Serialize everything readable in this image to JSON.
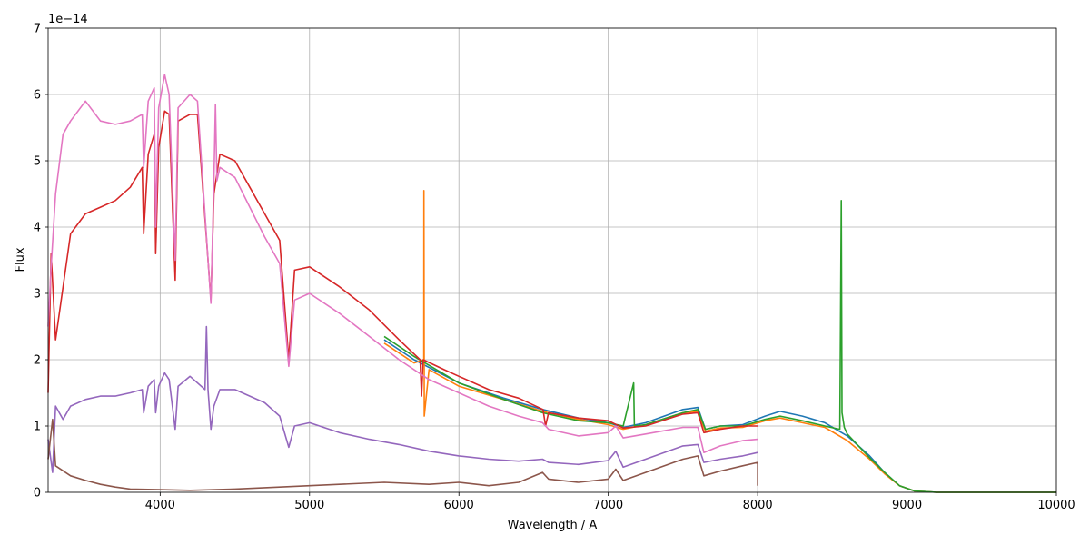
{
  "chart_data": {
    "type": "line",
    "xlabel": "Wavelength / A",
    "ylabel": "Flux",
    "offset_text": "1e−14",
    "xlim": [
      3250,
      10000
    ],
    "ylim": [
      0,
      7
    ],
    "grid": true,
    "xticks": [
      4000,
      5000,
      6000,
      7000,
      8000,
      9000,
      10000
    ],
    "yticks": [
      0,
      1,
      2,
      3,
      4,
      5,
      6,
      7
    ],
    "series": [
      {
        "color": "#1f77b4",
        "points": [
          [
            5500,
            2.3
          ],
          [
            5700,
            2.0
          ],
          [
            6000,
            1.65
          ],
          [
            6300,
            1.42
          ],
          [
            6560,
            1.25
          ],
          [
            6800,
            1.12
          ],
          [
            7000,
            1.05
          ],
          [
            7100,
            0.98
          ],
          [
            7250,
            1.05
          ],
          [
            7500,
            1.25
          ],
          [
            7600,
            1.28
          ],
          [
            7650,
            0.95
          ],
          [
            7750,
            1.0
          ],
          [
            7900,
            1.02
          ],
          [
            8050,
            1.15
          ],
          [
            8150,
            1.22
          ],
          [
            8300,
            1.15
          ],
          [
            8450,
            1.05
          ],
          [
            8600,
            0.85
          ],
          [
            8750,
            0.55
          ],
          [
            8850,
            0.3
          ],
          [
            8950,
            0.1
          ],
          [
            9050,
            0.02
          ],
          [
            9200,
            0.0
          ],
          [
            10000,
            0.0
          ]
        ]
      },
      {
        "color": "#ff7f0e",
        "points": [
          [
            5500,
            2.25
          ],
          [
            5700,
            1.95
          ],
          [
            5765,
            2.0
          ],
          [
            5766,
            4.55
          ],
          [
            5768,
            1.15
          ],
          [
            5800,
            1.85
          ],
          [
            6000,
            1.6
          ],
          [
            6300,
            1.4
          ],
          [
            6560,
            1.22
          ],
          [
            6800,
            1.1
          ],
          [
            7000,
            1.02
          ],
          [
            7100,
            0.95
          ],
          [
            7250,
            1.02
          ],
          [
            7500,
            1.2
          ],
          [
            7600,
            1.22
          ],
          [
            7650,
            0.92
          ],
          [
            7750,
            0.97
          ],
          [
            7900,
            0.98
          ],
          [
            8050,
            1.08
          ],
          [
            8150,
            1.12
          ],
          [
            8300,
            1.05
          ],
          [
            8450,
            0.98
          ],
          [
            8600,
            0.78
          ],
          [
            8750,
            0.5
          ],
          [
            8850,
            0.28
          ],
          [
            8950,
            0.1
          ],
          [
            9050,
            0.02
          ],
          [
            9200,
            0.0
          ],
          [
            10000,
            0.0
          ]
        ]
      },
      {
        "color": "#2ca02c",
        "points": [
          [
            5500,
            2.35
          ],
          [
            5700,
            2.05
          ],
          [
            6000,
            1.65
          ],
          [
            6300,
            1.4
          ],
          [
            6560,
            1.2
          ],
          [
            6800,
            1.08
          ],
          [
            7000,
            1.05
          ],
          [
            7100,
            1.0
          ],
          [
            7170,
            1.65
          ],
          [
            7175,
            1.0
          ],
          [
            7250,
            1.02
          ],
          [
            7500,
            1.2
          ],
          [
            7600,
            1.25
          ],
          [
            7650,
            0.95
          ],
          [
            7750,
            1.0
          ],
          [
            7900,
            1.0
          ],
          [
            8050,
            1.1
          ],
          [
            8150,
            1.15
          ],
          [
            8300,
            1.08
          ],
          [
            8450,
            1.0
          ],
          [
            8550,
            0.95
          ],
          [
            8560,
            4.4
          ],
          [
            8565,
            1.2
          ],
          [
            8580,
            0.98
          ],
          [
            8600,
            0.88
          ],
          [
            8750,
            0.52
          ],
          [
            8850,
            0.3
          ],
          [
            8950,
            0.1
          ],
          [
            9050,
            0.02
          ],
          [
            9200,
            0.0
          ],
          [
            10000,
            0.0
          ]
        ]
      },
      {
        "color": "#d62728",
        "points": [
          [
            3250,
            1.5
          ],
          [
            3270,
            3.6
          ],
          [
            3300,
            2.3
          ],
          [
            3400,
            3.9
          ],
          [
            3500,
            4.2
          ],
          [
            3600,
            4.3
          ],
          [
            3700,
            4.4
          ],
          [
            3800,
            4.6
          ],
          [
            3880,
            4.9
          ],
          [
            3890,
            3.9
          ],
          [
            3920,
            5.1
          ],
          [
            3960,
            5.4
          ],
          [
            3970,
            3.6
          ],
          [
            3990,
            5.2
          ],
          [
            4030,
            5.75
          ],
          [
            4060,
            5.7
          ],
          [
            4101,
            3.2
          ],
          [
            4120,
            5.6
          ],
          [
            4200,
            5.7
          ],
          [
            4250,
            5.7
          ],
          [
            4340,
            2.9
          ],
          [
            4360,
            4.5
          ],
          [
            4400,
            5.1
          ],
          [
            4500,
            5.0
          ],
          [
            4600,
            4.6
          ],
          [
            4700,
            4.2
          ],
          [
            4800,
            3.8
          ],
          [
            4861,
            2.0
          ],
          [
            4900,
            3.35
          ],
          [
            5000,
            3.4
          ],
          [
            5200,
            3.1
          ],
          [
            5400,
            2.75
          ],
          [
            5600,
            2.3
          ],
          [
            5740,
            2.0
          ],
          [
            5750,
            1.45
          ],
          [
            5760,
            2.0
          ],
          [
            5900,
            1.85
          ],
          [
            6000,
            1.75
          ],
          [
            6200,
            1.55
          ],
          [
            6400,
            1.42
          ],
          [
            6563,
            1.25
          ],
          [
            6580,
            1.0
          ],
          [
            6600,
            1.2
          ],
          [
            6800,
            1.12
          ],
          [
            7000,
            1.08
          ],
          [
            7100,
            0.97
          ],
          [
            7250,
            1.0
          ],
          [
            7500,
            1.18
          ],
          [
            7600,
            1.2
          ],
          [
            7640,
            0.9
          ],
          [
            7750,
            0.95
          ],
          [
            7900,
            1.0
          ],
          [
            8000,
            1.0
          ]
        ]
      },
      {
        "color": "#9467bd",
        "points": [
          [
            3250,
            0.8
          ],
          [
            3280,
            0.3
          ],
          [
            3300,
            1.3
          ],
          [
            3350,
            1.1
          ],
          [
            3400,
            1.3
          ],
          [
            3500,
            1.4
          ],
          [
            3600,
            1.45
          ],
          [
            3700,
            1.45
          ],
          [
            3800,
            1.5
          ],
          [
            3880,
            1.55
          ],
          [
            3890,
            1.2
          ],
          [
            3920,
            1.6
          ],
          [
            3960,
            1.7
          ],
          [
            3970,
            1.2
          ],
          [
            3990,
            1.6
          ],
          [
            4030,
            1.8
          ],
          [
            4060,
            1.7
          ],
          [
            4101,
            0.95
          ],
          [
            4120,
            1.6
          ],
          [
            4200,
            1.75
          ],
          [
            4300,
            1.55
          ],
          [
            4310,
            2.5
          ],
          [
            4320,
            1.55
          ],
          [
            4340,
            0.95
          ],
          [
            4360,
            1.3
          ],
          [
            4400,
            1.55
          ],
          [
            4500,
            1.55
          ],
          [
            4600,
            1.45
          ],
          [
            4700,
            1.35
          ],
          [
            4800,
            1.15
          ],
          [
            4861,
            0.68
          ],
          [
            4900,
            1.0
          ],
          [
            5000,
            1.05
          ],
          [
            5200,
            0.9
          ],
          [
            5400,
            0.8
          ],
          [
            5600,
            0.72
          ],
          [
            5800,
            0.62
          ],
          [
            6000,
            0.55
          ],
          [
            6200,
            0.5
          ],
          [
            6400,
            0.47
          ],
          [
            6560,
            0.5
          ],
          [
            6600,
            0.45
          ],
          [
            6800,
            0.42
          ],
          [
            7000,
            0.48
          ],
          [
            7050,
            0.62
          ],
          [
            7100,
            0.38
          ],
          [
            7250,
            0.5
          ],
          [
            7500,
            0.7
          ],
          [
            7600,
            0.72
          ],
          [
            7640,
            0.45
          ],
          [
            7750,
            0.5
          ],
          [
            7900,
            0.55
          ],
          [
            8000,
            0.6
          ]
        ]
      },
      {
        "color": "#8c564b",
        "points": [
          [
            3250,
            0.5
          ],
          [
            3280,
            1.1
          ],
          [
            3300,
            0.4
          ],
          [
            3400,
            0.25
          ],
          [
            3500,
            0.18
          ],
          [
            3600,
            0.12
          ],
          [
            3700,
            0.08
          ],
          [
            3800,
            0.05
          ],
          [
            4000,
            0.04
          ],
          [
            4200,
            0.03
          ],
          [
            4500,
            0.05
          ],
          [
            4800,
            0.08
          ],
          [
            5000,
            0.1
          ],
          [
            5200,
            0.12
          ],
          [
            5500,
            0.15
          ],
          [
            5800,
            0.12
          ],
          [
            6000,
            0.15
          ],
          [
            6200,
            0.1
          ],
          [
            6400,
            0.15
          ],
          [
            6560,
            0.3
          ],
          [
            6600,
            0.2
          ],
          [
            6800,
            0.15
          ],
          [
            7000,
            0.2
          ],
          [
            7050,
            0.35
          ],
          [
            7100,
            0.18
          ],
          [
            7250,
            0.3
          ],
          [
            7500,
            0.5
          ],
          [
            7600,
            0.55
          ],
          [
            7640,
            0.25
          ],
          [
            7750,
            0.32
          ],
          [
            7900,
            0.4
          ],
          [
            8000,
            0.45
          ],
          [
            8000,
            0.1
          ]
        ]
      },
      {
        "color": "#e377c2",
        "points": [
          [
            3250,
            2.5
          ],
          [
            3270,
            3.4
          ],
          [
            3300,
            4.5
          ],
          [
            3350,
            5.4
          ],
          [
            3400,
            5.6
          ],
          [
            3500,
            5.9
          ],
          [
            3600,
            5.6
          ],
          [
            3700,
            5.55
          ],
          [
            3800,
            5.6
          ],
          [
            3880,
            5.7
          ],
          [
            3890,
            4.9
          ],
          [
            3920,
            5.9
          ],
          [
            3960,
            6.1
          ],
          [
            3970,
            4.0
          ],
          [
            3990,
            5.8
          ],
          [
            4030,
            6.3
          ],
          [
            4060,
            6.0
          ],
          [
            4101,
            3.5
          ],
          [
            4120,
            5.8
          ],
          [
            4200,
            6.0
          ],
          [
            4250,
            5.9
          ],
          [
            4340,
            2.85
          ],
          [
            4360,
            4.7
          ],
          [
            4370,
            5.85
          ],
          [
            4380,
            4.7
          ],
          [
            4400,
            4.9
          ],
          [
            4500,
            4.75
          ],
          [
            4600,
            4.3
          ],
          [
            4700,
            3.85
          ],
          [
            4800,
            3.45
          ],
          [
            4861,
            1.9
          ],
          [
            4900,
            2.9
          ],
          [
            5000,
            3.0
          ],
          [
            5200,
            2.7
          ],
          [
            5400,
            2.35
          ],
          [
            5600,
            2.0
          ],
          [
            5800,
            1.7
          ],
          [
            6000,
            1.5
          ],
          [
            6200,
            1.3
          ],
          [
            6400,
            1.15
          ],
          [
            6560,
            1.05
          ],
          [
            6600,
            0.95
          ],
          [
            6800,
            0.85
          ],
          [
            7000,
            0.9
          ],
          [
            7050,
            1.0
          ],
          [
            7100,
            0.82
          ],
          [
            7250,
            0.88
          ],
          [
            7500,
            0.98
          ],
          [
            7600,
            0.98
          ],
          [
            7640,
            0.6
          ],
          [
            7750,
            0.7
          ],
          [
            7900,
            0.78
          ],
          [
            8000,
            0.8
          ]
        ]
      }
    ]
  }
}
